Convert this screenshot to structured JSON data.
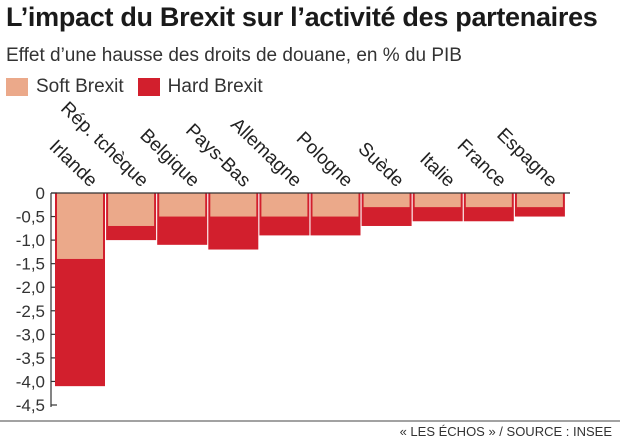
{
  "header": {
    "title": "L’impact du Brexit sur l’activité des partenaires",
    "subtitle": "Effet d’une hausse des droits de douane, en  % du PIB"
  },
  "source": "« LES ÉCHOS » / SOURCE : INSEE",
  "colors": {
    "soft": "#eba98a",
    "hard": "#d21f2d",
    "axis": "#333333",
    "grid": "#d9d9d9"
  },
  "chart_data": {
    "type": "bar",
    "title": "L’impact du Brexit sur l’activité des partenaires",
    "subtitle": "Effet d’une hausse des droits de douane, en  % du PIB",
    "categories": [
      "Irlande",
      "Rép. tchèque",
      "Belgique",
      "Pays-Bas",
      "Allemagne",
      "Pologne",
      "Suède",
      "Italie",
      "France",
      "Espagne"
    ],
    "series": [
      {
        "name": "Soft Brexit",
        "values": [
          -1.4,
          -0.7,
          -0.5,
          -0.5,
          -0.5,
          -0.5,
          -0.3,
          -0.3,
          -0.3,
          -0.3
        ]
      },
      {
        "name": "Hard Brexit",
        "values": [
          -4.1,
          -1.0,
          -1.1,
          -1.2,
          -0.9,
          -0.9,
          -0.7,
          -0.6,
          -0.6,
          -0.5
        ]
      }
    ],
    "ylim": [
      -4.5,
      0
    ],
    "yticks": [
      0,
      -0.5,
      -1.0,
      -1.5,
      -2.0,
      -2.5,
      -3.0,
      -3.5,
      -4.0,
      -4.5
    ],
    "ytick_labels": [
      "0",
      "-0,5",
      "-1,0",
      "-1,5",
      "-2,0",
      "-2,5",
      "-3,0",
      "-3,5",
      "-4,0",
      "-4,5"
    ],
    "legend_position": "top-left",
    "grid": false
  }
}
